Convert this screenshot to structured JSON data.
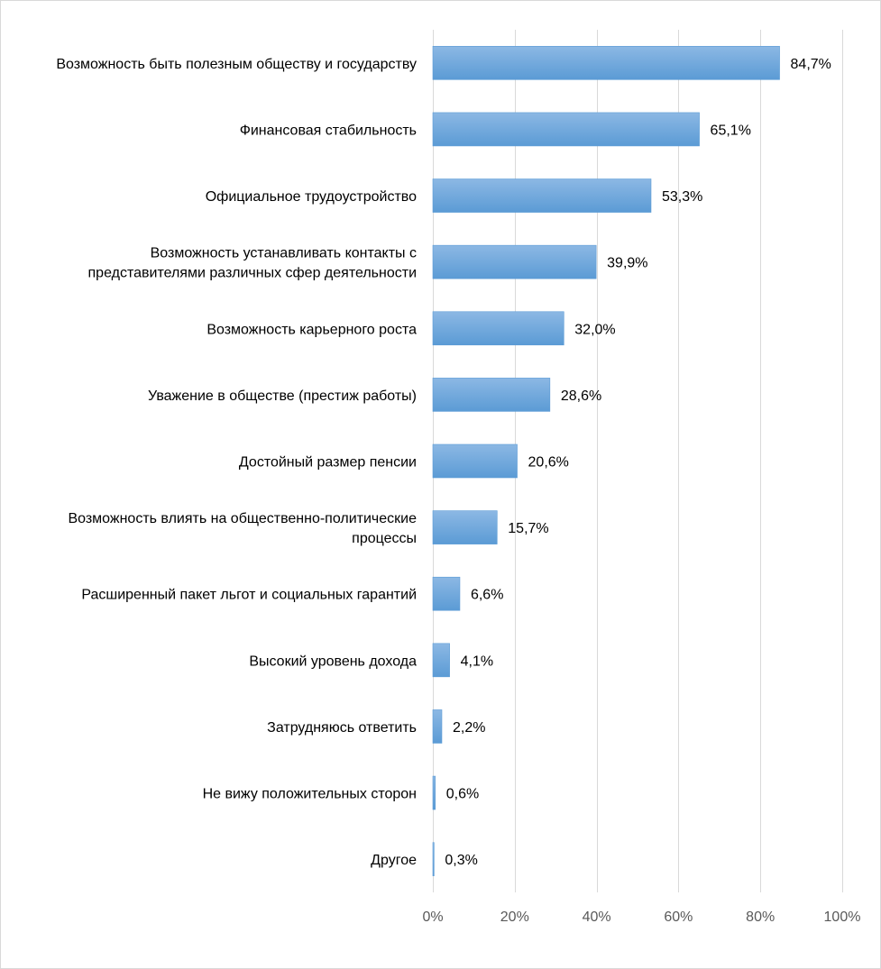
{
  "chart_data": {
    "type": "bar",
    "orientation": "horizontal",
    "categories": [
      [
        "Возможность быть полезным обществу и государству"
      ],
      [
        "Финансовая стабильность"
      ],
      [
        "Официальное трудоустройство"
      ],
      [
        "Возможность устанавливать контакты с",
        "представителями различных сфер деятельности"
      ],
      [
        "Возможность карьерного роста"
      ],
      [
        "Уважение в обществе (престиж работы)"
      ],
      [
        "Достойный размер пенсии"
      ],
      [
        "Возможность влиять на общественно-политические",
        "процессы"
      ],
      [
        "Расширенный пакет льгот и социальных гарантий"
      ],
      [
        "Высокий уровень дохода"
      ],
      [
        "Затрудняюсь ответить"
      ],
      [
        "Не вижу положительных сторон"
      ],
      [
        "Другое"
      ]
    ],
    "values": [
      84.7,
      65.1,
      53.3,
      39.9,
      32.0,
      28.6,
      20.6,
      15.7,
      6.6,
      4.1,
      2.2,
      0.6,
      0.3
    ],
    "value_labels": [
      "84,7%",
      "65,1%",
      "53,3%",
      "39,9%",
      "32,0%",
      "28,6%",
      "20,6%",
      "15,7%",
      "6,6%",
      "4,1%",
      "2,2%",
      "0,6%",
      "0,3%"
    ],
    "xlim": [
      0,
      100
    ],
    "x_ticks": [
      0,
      20,
      40,
      60,
      80,
      100
    ],
    "x_tick_labels": [
      "0%",
      "20%",
      "40%",
      "60%",
      "80%",
      "100%"
    ],
    "grid": "vertical",
    "legend": "none",
    "bar_color": "#5b9bd5",
    "bar_color_light": "#8cb8e4",
    "grid_color": "#d9d9d9"
  }
}
